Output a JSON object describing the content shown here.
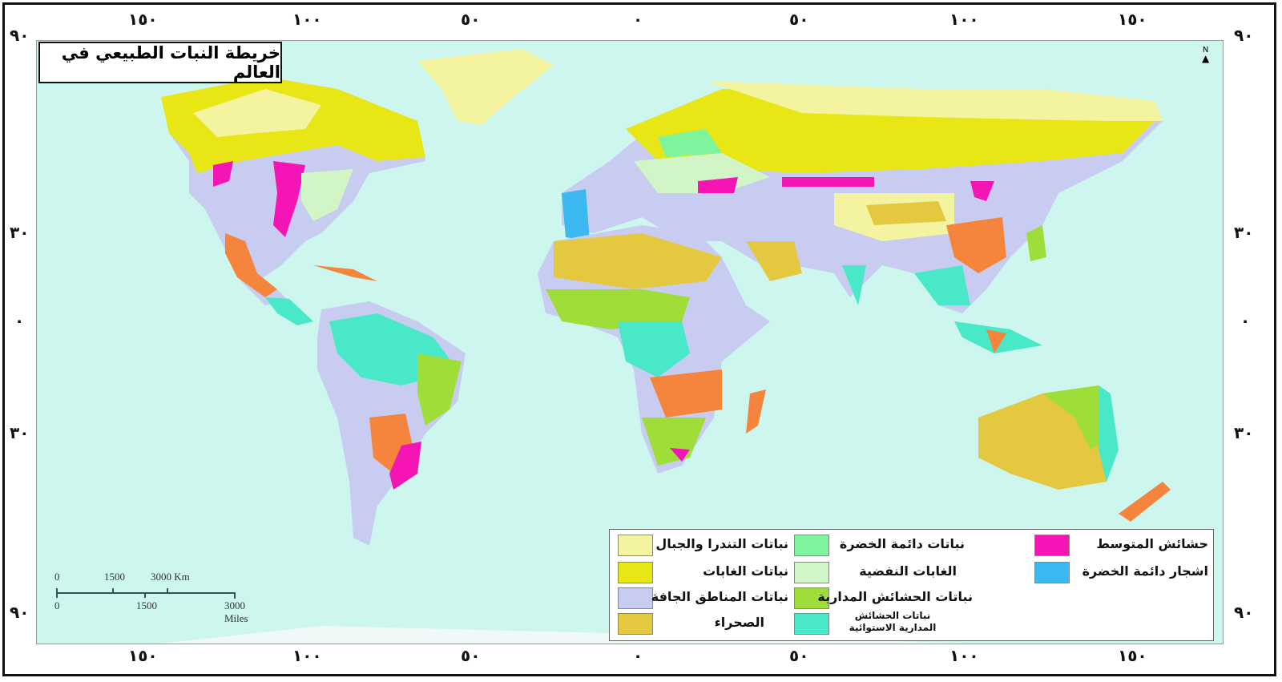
{
  "title": "خريطة النبات الطبيعي في العالم",
  "longitude_labels": [
    "١٥٠",
    "١٠٠",
    "٥٠",
    "٠",
    "٥٠",
    "١٠٠",
    "١٥٠"
  ],
  "latitude_labels": [
    "٩٠",
    "٣٠",
    "٠",
    "٣٠",
    "٩٠"
  ],
  "north_arrow": "N",
  "scale_bar": {
    "km_labels": [
      "0",
      "1500",
      "3000 Km"
    ],
    "mile_labels": [
      "0",
      "1500",
      "3000 Miles"
    ]
  },
  "legend": [
    {
      "label": "نباتات التندرا والجبال",
      "color": "#f3f3a0"
    },
    {
      "label": "نباتات الغابات",
      "color": "#e9e616"
    },
    {
      "label": "نباتات المناطق الجافة",
      "color": "#c8ccf0"
    },
    {
      "label": "الصحراء",
      "color": "#e3c840"
    },
    {
      "label": "نباتات دائمة الخضرة",
      "color": "#7ef59c"
    },
    {
      "label": "الغابات النفضية",
      "color": "#d2f5c8"
    },
    {
      "label": "نباتات الحشائش المدارية",
      "color": "#9fde38"
    },
    {
      "label": "نباتات الحشائش المدارية الاستوائية",
      "color": "#48e8c8"
    },
    {
      "label": "حشائش المتوسط",
      "color": "#f514b4"
    },
    {
      "label": "اشجار دائمة الخضرة",
      "color": "#3cb8f0"
    }
  ],
  "colors": {
    "ocean": "#cdf6ef",
    "orange_region": "#f5843c"
  }
}
